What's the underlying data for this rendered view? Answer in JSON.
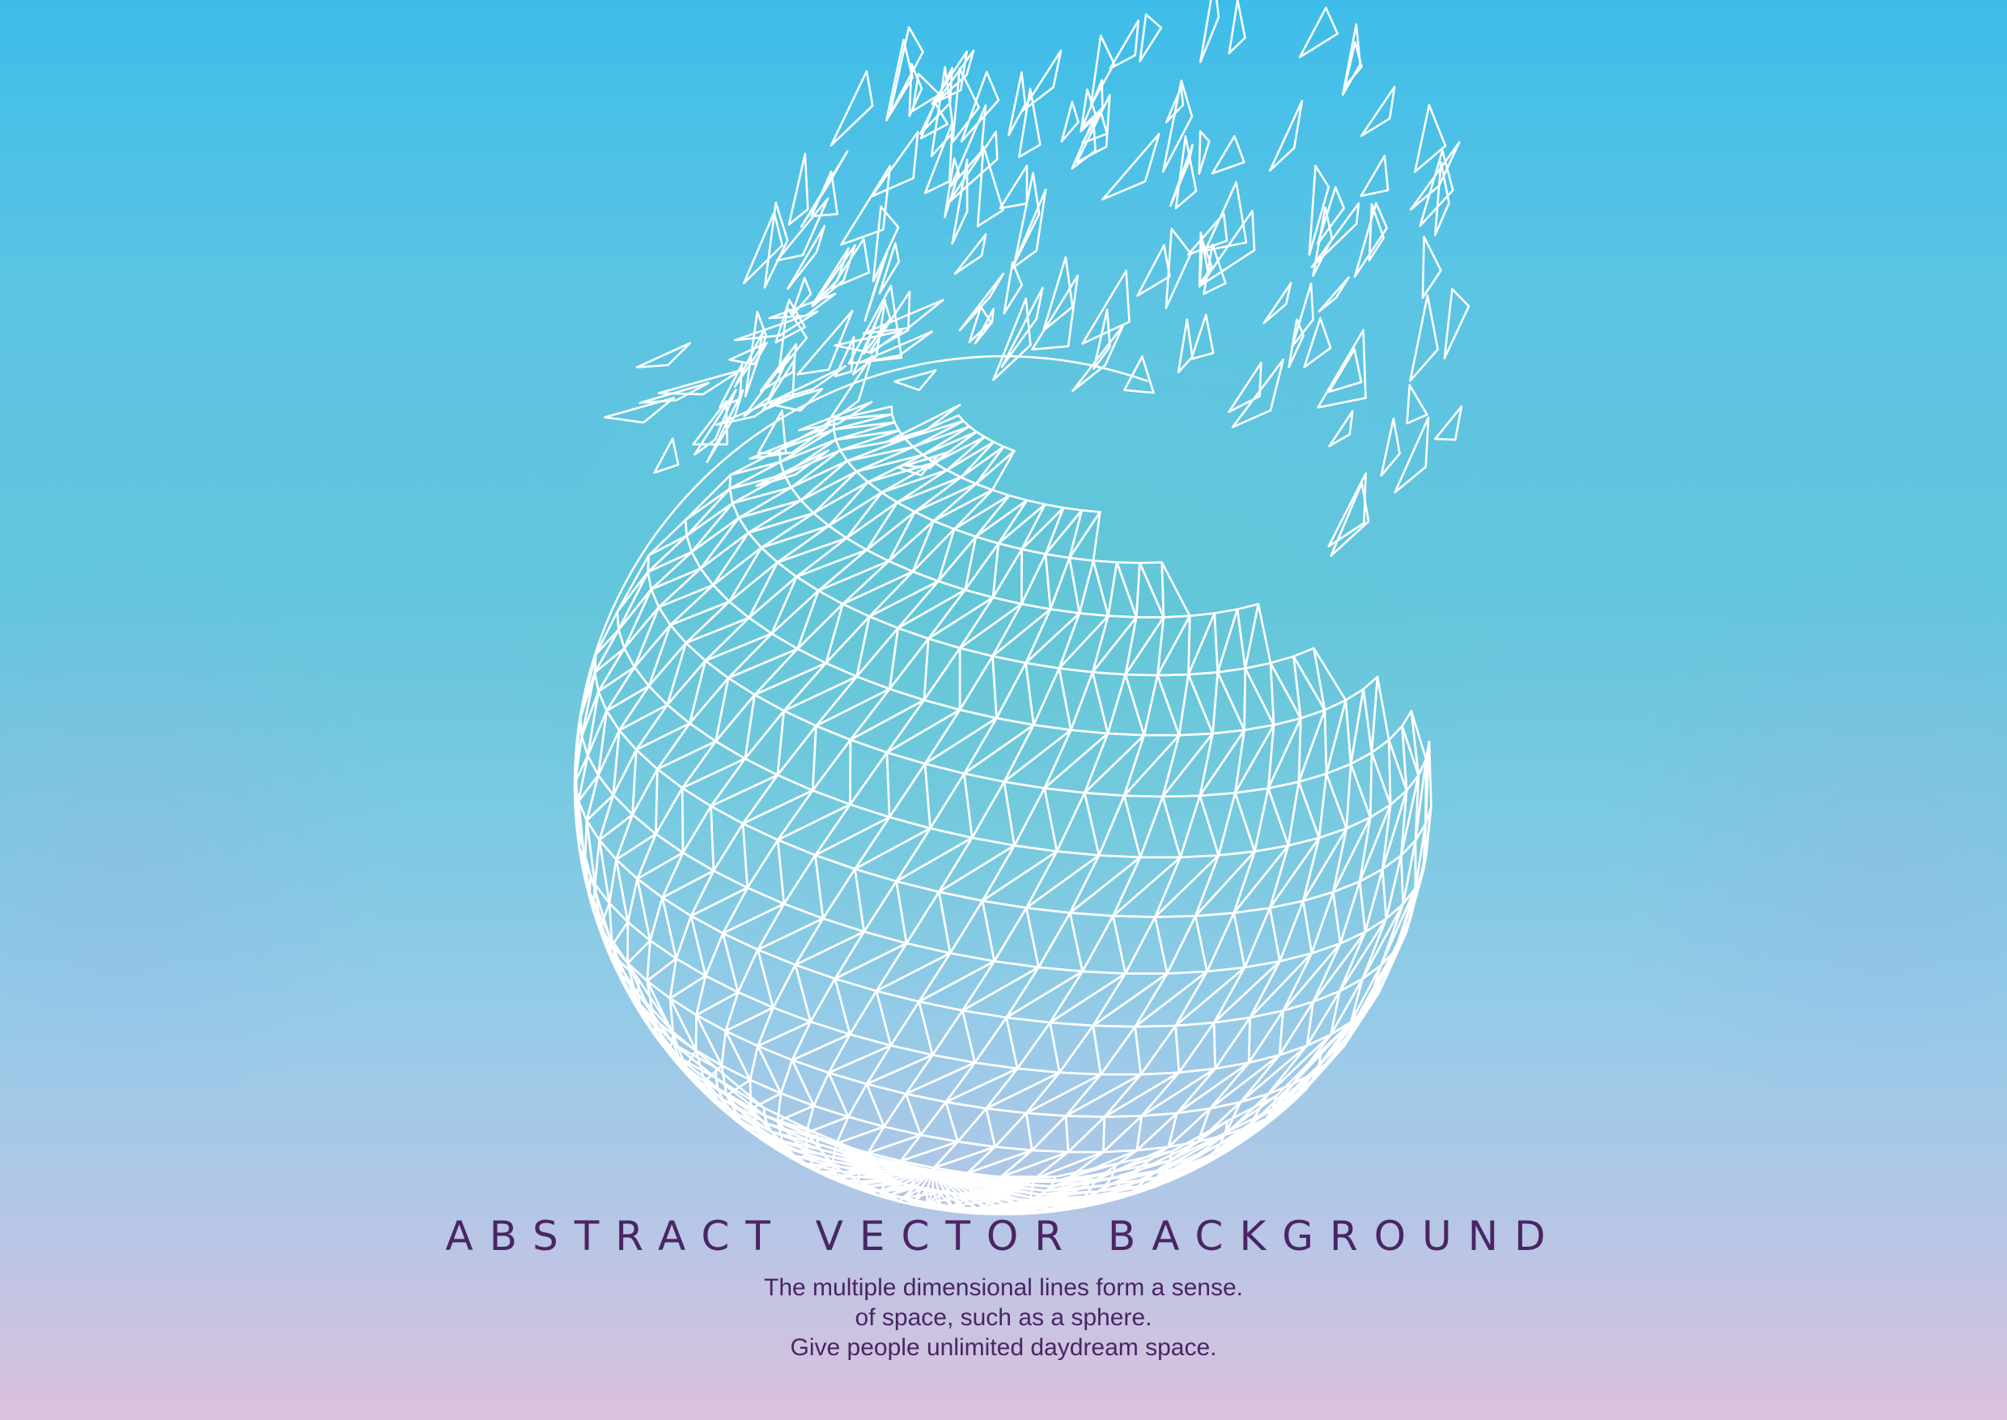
{
  "title": "ABSTRACT VECTOR BACKGROUND",
  "description": {
    "line1": "The multiple dimensional lines form a sense.",
    "line2": "of space, such as a sphere.",
    "line3": "Give people unlimited daydream space."
  },
  "colors": {
    "text": "#4a2565",
    "line": "#ffffff",
    "sky_top": "#3dbde9",
    "sky_bottom": "#dbc1dd"
  },
  "graphic": "wireframe-sphere-dispersing-into-triangles"
}
